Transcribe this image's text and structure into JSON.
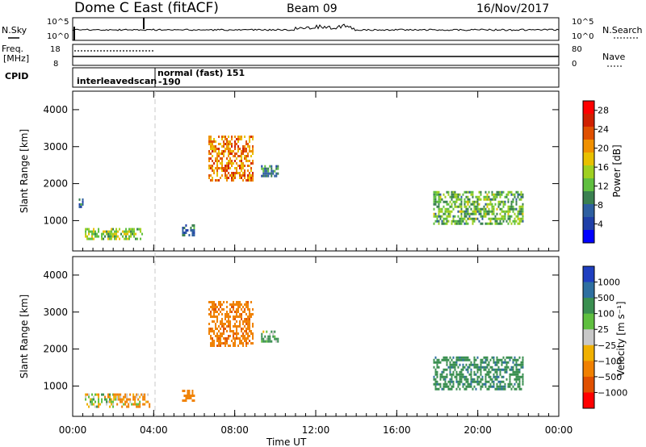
{
  "header": {
    "title": "Dome C East (fitACF)",
    "beam": "Beam 09",
    "date": "16/Nov/2017"
  },
  "status_panels": {
    "nsky_label": "N.Sky",
    "nsearch_label": "N.Search",
    "freq_label": "Freq.",
    "freq_unit": "[MHz]",
    "nave_label": "Nave",
    "cpid_label": "CPID",
    "left_ticks_top": [
      "10^5",
      "10^0"
    ],
    "right_ticks_top": [
      "10^5",
      "10^0"
    ],
    "left_ticks_freq": [
      "18",
      "8"
    ],
    "right_ticks_freq": [
      "80",
      "0"
    ],
    "cpid_entries": [
      {
        "label": "interleavedscan",
        "start_hour": 0.0
      },
      {
        "label": "normal (fast)  151",
        "start_hour": 4.0
      },
      {
        "label": "-190",
        "start_hour": 4.0
      }
    ]
  },
  "colors": {
    "power_scale": [
      "#0000ff",
      "#1f3fa8",
      "#2e5fa0",
      "#3a8050",
      "#5fbf3f",
      "#9fd020",
      "#e8c000",
      "#f09000",
      "#e05000",
      "#d02000",
      "#ff0000"
    ],
    "velocity_scale": [
      "#1f3fc0",
      "#2e6fa0",
      "#3a8f50",
      "#5fbf3f",
      "#c8c8c8",
      "#f0b000",
      "#f08000",
      "#e05000",
      "#ff0000"
    ],
    "ground_scatter": "#a0a0a0"
  },
  "chart_data": [
    {
      "type": "heatmap",
      "name": "Power",
      "ylabel": "Slant Range [km]",
      "xlabel": "Time UT",
      "x_ticks": [
        "00:00",
        "04:00",
        "08:00",
        "12:00",
        "16:00",
        "20:00",
        "00:00"
      ],
      "y_ticks": [
        1000,
        2000,
        3000,
        4000
      ],
      "xlim_hours": [
        0,
        24
      ],
      "ylim_km": [
        180,
        4500
      ],
      "colorbar": {
        "label": "Power [dB]",
        "ticks": [
          4,
          8,
          12,
          16,
          20,
          24,
          28
        ],
        "range": [
          0,
          30
        ]
      },
      "echo_regions": [
        {
          "t0": 0.6,
          "t1": 3.4,
          "r0": 500,
          "r1": 800,
          "value": 14
        },
        {
          "t0": 0.3,
          "t1": 0.5,
          "r0": 1300,
          "r1": 1600,
          "value": 8
        },
        {
          "t0": 5.4,
          "t1": 6.0,
          "r0": 600,
          "r1": 900,
          "value": 8
        },
        {
          "t0": 6.7,
          "t1": 8.9,
          "r0": 2100,
          "r1": 3300,
          "value": 22
        },
        {
          "t0": 9.3,
          "t1": 10.1,
          "r0": 2200,
          "r1": 2500,
          "value": 8
        },
        {
          "t0": 17.8,
          "t1": 22.2,
          "r0": 900,
          "r1": 1800,
          "value": 12
        }
      ]
    },
    {
      "type": "heatmap",
      "name": "Velocity",
      "ylabel": "Slant Range [km]",
      "xlabel": "Time UT",
      "x_ticks": [
        "00:00",
        "04:00",
        "08:00",
        "12:00",
        "16:00",
        "20:00",
        "00:00"
      ],
      "y_ticks": [
        1000,
        2000,
        3000,
        4000
      ],
      "xlim_hours": [
        0,
        24
      ],
      "ylim_km": [
        180,
        4500
      ],
      "colorbar": {
        "label": "Velocity [m s⁻¹]",
        "ticks": [
          "1000",
          "500",
          "100",
          "25",
          "−25",
          "−100",
          "−500",
          "−1000"
        ]
      },
      "echo_regions": [
        {
          "t0": 0.6,
          "t1": 2.0,
          "r0": 450,
          "r1": 800,
          "value": 0
        },
        {
          "t0": 2.0,
          "t1": 3.8,
          "r0": 450,
          "r1": 800,
          "value": -100
        },
        {
          "t0": 5.4,
          "t1": 6.0,
          "r0": 600,
          "r1": 900,
          "value": -300
        },
        {
          "t0": 6.7,
          "t1": 8.9,
          "r0": 2100,
          "r1": 3300,
          "value": -400
        },
        {
          "t0": 9.3,
          "t1": 10.1,
          "r0": 2200,
          "r1": 2500,
          "value": 120
        },
        {
          "t0": 17.8,
          "t1": 22.2,
          "r0": 900,
          "r1": 1800,
          "value": 400
        }
      ]
    }
  ]
}
